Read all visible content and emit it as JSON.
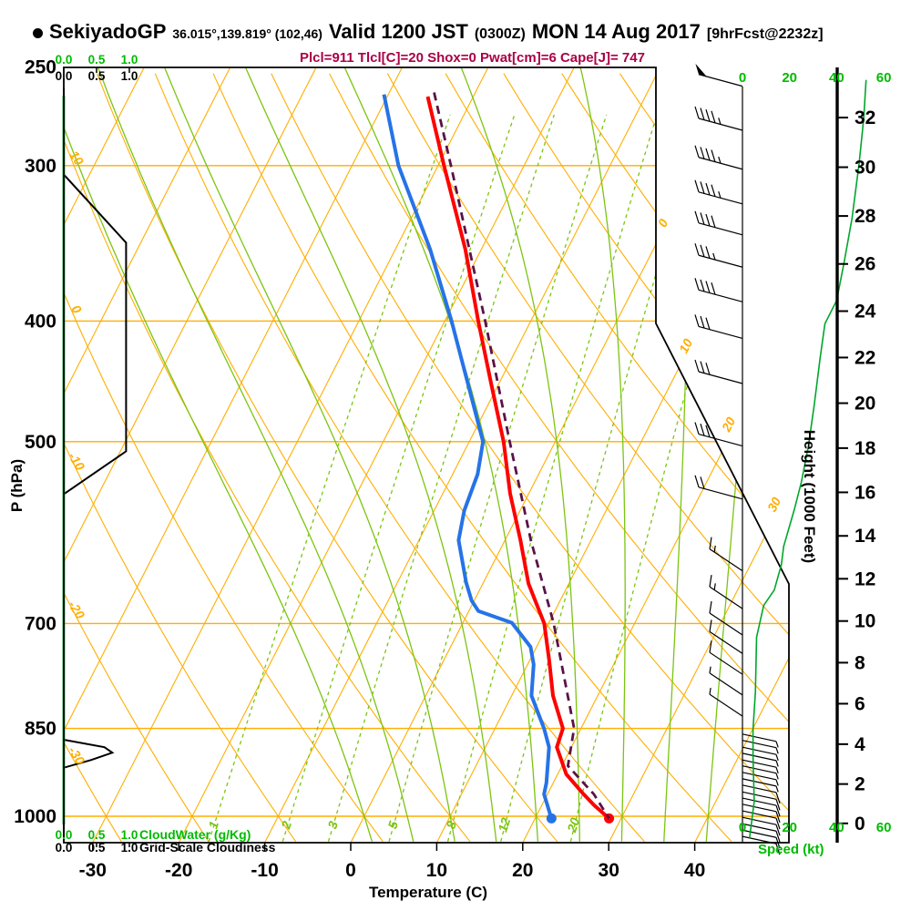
{
  "header": {
    "station": "SekiyadoGP",
    "coords": "36.015°,139.819° (102,46)",
    "valid": "Valid 1200 JST",
    "valid_utc": "(0300Z)",
    "date": "MON 14 Aug 2017",
    "forecast": "[9hrFcst@2232z]",
    "params_line": "Plcl=911 Tlcl[C]=20 Shox=0 Pwat[cm]=6 Cape[J]= 747"
  },
  "axes": {
    "pressure_label": "P (hPa)",
    "pressure_ticks": [
      250,
      300,
      400,
      500,
      700,
      850,
      1000
    ],
    "temperature_label": "Temperature (C)",
    "temperature_ticks": [
      -30,
      -20,
      -10,
      0,
      10,
      20,
      30,
      40
    ],
    "height_label": "Height (1000 Feet)",
    "height_ticks": [
      0,
      2,
      4,
      6,
      8,
      10,
      12,
      14,
      16,
      18,
      20,
      22,
      24,
      26,
      28,
      30,
      32
    ],
    "speed_label": "Speed (kt)",
    "speed_ticks": [
      0,
      20,
      40,
      60
    ],
    "cloudwater_label": "CloudWater (g/Kg)",
    "cloudiness_label": "Grid-Scale Cloudiness",
    "cloud_scale_ticks": [
      "0.0",
      "0.5",
      "1.0"
    ]
  },
  "grid": {
    "isobars": [
      300,
      400,
      500,
      700,
      850,
      1000
    ],
    "isotherms": [
      -100,
      -90,
      -80,
      -70,
      -60,
      -50,
      -40,
      -30,
      -20,
      -10,
      0,
      10,
      20,
      30,
      40
    ],
    "isotherm_labels": [
      0,
      10,
      20,
      30
    ],
    "dry_adiabats": [
      -30,
      -20,
      -10,
      0,
      10,
      20,
      30,
      40,
      50,
      60,
      70,
      80,
      90,
      100,
      110,
      120,
      130
    ],
    "dry_adiabat_labels": [
      10,
      0,
      -10,
      -20,
      -30
    ],
    "moist_adiabats": [
      0,
      5,
      10,
      15,
      20,
      25,
      30,
      35,
      40
    ],
    "mixing_ratios": [
      1,
      2,
      3,
      5,
      8,
      12,
      20
    ]
  },
  "colors": {
    "grid_orange": "#ffae00",
    "grid_green": "#7cc410",
    "scale_green": "#00bb00",
    "profile_green": "#00a62c",
    "temperature_red": "#ff0000",
    "dewpoint_blue": "#2673e8",
    "parcel_purple": "#5a1248",
    "params_text": "#aa0045",
    "black": "#000000"
  },
  "chart_data": {
    "type": "skewt_sounding",
    "pressure_unit": "hPa",
    "temperature_unit": "C",
    "temperature_profile": [
      [
        1004,
        28.6
      ],
      [
        980,
        26.1
      ],
      [
        960,
        24.2
      ],
      [
        925,
        21
      ],
      [
        880,
        18.3
      ],
      [
        850,
        17.9
      ],
      [
        800,
        14.8
      ],
      [
        750,
        12.3
      ],
      [
        700,
        9.5
      ],
      [
        650,
        5.3
      ],
      [
        600,
        1.8
      ],
      [
        550,
        -2.2
      ],
      [
        500,
        -6
      ],
      [
        450,
        -10.8
      ],
      [
        400,
        -16.1
      ],
      [
        350,
        -21.9
      ],
      [
        300,
        -29.3
      ],
      [
        264,
        -35.3
      ]
    ],
    "dewpoint_profile": [
      [
        1004,
        21.9
      ],
      [
        960,
        19.6
      ],
      [
        940,
        19.2
      ],
      [
        880,
        17.4
      ],
      [
        850,
        15.7
      ],
      [
        800,
        12.3
      ],
      [
        755,
        10.7
      ],
      [
        731,
        9.3
      ],
      [
        699,
        5.7
      ],
      [
        684,
        1.1
      ],
      [
        671,
        -0.3
      ],
      [
        649,
        -2
      ],
      [
        600,
        -5.4
      ],
      [
        568,
        -6.5
      ],
      [
        531,
        -7.1
      ],
      [
        500,
        -8.4
      ],
      [
        450,
        -13.5
      ],
      [
        400,
        -19.2
      ],
      [
        350,
        -26
      ],
      [
        300,
        -34.6
      ],
      [
        263,
        -40.5
      ]
    ],
    "parcel_profile": [
      [
        1004,
        28.6
      ],
      [
        960,
        25.4
      ],
      [
        911,
        20.7
      ],
      [
        850,
        19.2
      ],
      [
        700,
        10.6
      ],
      [
        600,
        3
      ],
      [
        500,
        -5.3
      ],
      [
        400,
        -15.3
      ],
      [
        300,
        -28.5
      ],
      [
        262,
        -34.8
      ]
    ],
    "surface_temperature_dot": [
      1004,
      28.6
    ],
    "surface_dewpoint_dot": [
      1004,
      21.9
    ],
    "cloudiness_profile": [
      [
        260,
        0
      ],
      [
        305,
        0
      ],
      [
        346,
        0.95
      ],
      [
        509,
        0.95
      ],
      [
        551,
        0
      ],
      [
        868,
        0
      ],
      [
        880,
        0.62
      ],
      [
        889,
        0.74
      ],
      [
        901,
        0.42
      ],
      [
        914,
        0
      ],
      [
        1045,
        0
      ]
    ],
    "cloud_water_profile_value": 0,
    "wind_barbs": [
      [
        259,
        50,
        "nw"
      ],
      [
        281,
        45,
        "nw"
      ],
      [
        302,
        45,
        "nw"
      ],
      [
        322,
        45,
        "nw"
      ],
      [
        341,
        40,
        "nw"
      ],
      [
        362,
        35,
        "nw"
      ],
      [
        386,
        40,
        "nw"
      ],
      [
        413,
        30,
        "nw"
      ],
      [
        449,
        30,
        "nw"
      ],
      [
        504,
        30,
        "nw"
      ],
      [
        556,
        20,
        "nw"
      ],
      [
        635,
        15,
        "nw2"
      ],
      [
        681,
        15,
        "nw2"
      ],
      [
        715,
        10,
        "nw2"
      ],
      [
        740,
        10,
        "nw2"
      ],
      [
        769,
        10,
        "nw2"
      ],
      [
        799,
        8,
        "nw2"
      ],
      [
        831,
        5,
        "nw2"
      ],
      [
        859,
        5,
        "se"
      ],
      [
        869,
        5,
        "se"
      ],
      [
        880,
        5,
        "se"
      ],
      [
        890,
        5,
        "se"
      ],
      [
        901,
        8,
        "se"
      ],
      [
        911,
        8,
        "se"
      ],
      [
        922,
        8,
        "se"
      ],
      [
        933,
        8,
        "se"
      ],
      [
        944,
        10,
        "se"
      ],
      [
        956,
        10,
        "se"
      ],
      [
        967,
        10,
        "se"
      ],
      [
        978,
        10,
        "se"
      ],
      [
        990,
        10,
        "se"
      ],
      [
        1002,
        10,
        "se"
      ],
      [
        1014,
        10,
        "se"
      ],
      [
        1026,
        10,
        "se"
      ],
      [
        1038,
        10,
        "se"
      ]
    ],
    "wind_speed_curve_kt": [
      [
        1041,
        3
      ],
      [
        973,
        5
      ],
      [
        895,
        4.5
      ],
      [
        851,
        4.5
      ],
      [
        795,
        5.5
      ],
      [
        718,
        6
      ],
      [
        677,
        9
      ],
      [
        658,
        13.5
      ],
      [
        628,
        16.5
      ],
      [
        607,
        17.5
      ],
      [
        567,
        22
      ],
      [
        539,
        25
      ],
      [
        504,
        28
      ],
      [
        467,
        30.5
      ],
      [
        428,
        33
      ],
      [
        402,
        35
      ],
      [
        385,
        40
      ],
      [
        360,
        43
      ],
      [
        331,
        46.5
      ],
      [
        299,
        49.5
      ],
      [
        275,
        51.5
      ],
      [
        256,
        52.5
      ]
    ]
  }
}
